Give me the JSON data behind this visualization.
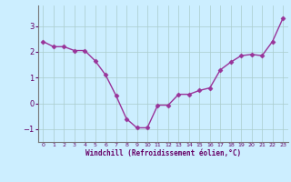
{
  "x": [
    0,
    1,
    2,
    3,
    4,
    5,
    6,
    7,
    8,
    9,
    10,
    11,
    12,
    13,
    14,
    15,
    16,
    17,
    18,
    19,
    20,
    21,
    22,
    23
  ],
  "y": [
    2.4,
    2.2,
    2.2,
    2.05,
    2.05,
    1.65,
    1.1,
    0.3,
    -0.6,
    -0.95,
    -0.95,
    -0.07,
    -0.07,
    0.35,
    0.35,
    0.5,
    0.6,
    1.3,
    1.6,
    1.85,
    1.9,
    1.85,
    2.4,
    3.3
  ],
  "line_color": "#993399",
  "marker": "D",
  "marker_size": 2.5,
  "bg_color": "#cceeff",
  "grid_color": "#aacccc",
  "xlabel": "Windchill (Refroidissement éolien,°C)",
  "xlabel_color": "#660066",
  "tick_color": "#660066",
  "ylim": [
    -1.5,
    3.8
  ],
  "xlim": [
    -0.5,
    23.5
  ],
  "yticks": [
    -1,
    0,
    1,
    2,
    3
  ],
  "xticks": [
    0,
    1,
    2,
    3,
    4,
    5,
    6,
    7,
    8,
    9,
    10,
    11,
    12,
    13,
    14,
    15,
    16,
    17,
    18,
    19,
    20,
    21,
    22,
    23
  ]
}
